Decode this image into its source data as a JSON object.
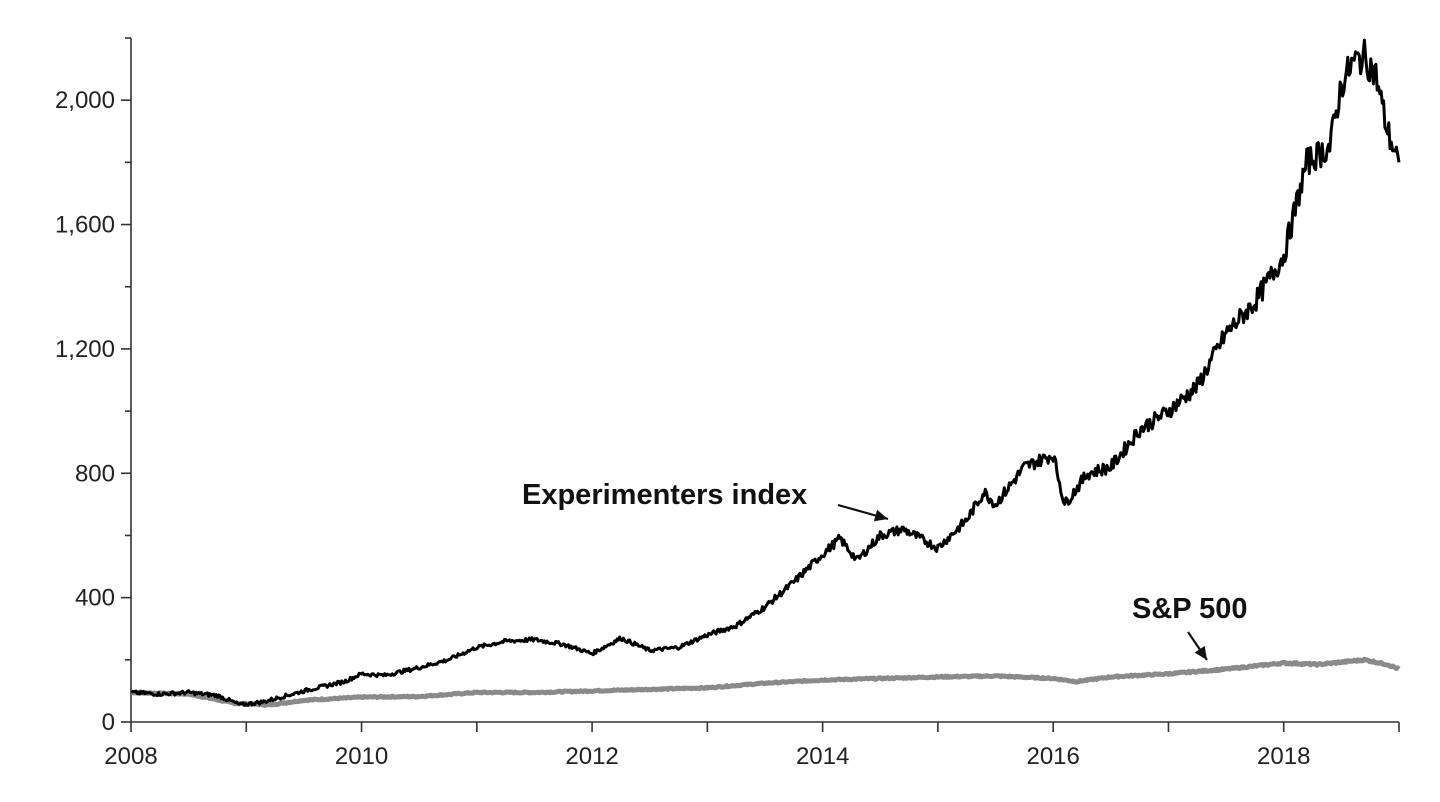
{
  "chart_data": {
    "type": "line",
    "title": "",
    "xlabel": "",
    "ylabel": "",
    "xlim": [
      2008,
      2019
    ],
    "ylim": [
      0,
      2200
    ],
    "x_ticks": [
      2008,
      2010,
      2012,
      2014,
      2016,
      2018
    ],
    "x_tick_labels": [
      "2008",
      "2010",
      "2012",
      "2014",
      "2016",
      "2018"
    ],
    "y_ticks": [
      0,
      400,
      800,
      1200,
      1600,
      2000
    ],
    "y_tick_labels": [
      "0",
      "400",
      "800",
      "1,200",
      "1,600",
      "2,000"
    ],
    "grid": false,
    "legend": "none",
    "series": [
      {
        "name": "Experimenters index",
        "color": "#000000",
        "x": [
          2008.0,
          2008.25,
          2008.5,
          2008.75,
          2008.95,
          2009.15,
          2009.5,
          2009.85,
          2010.0,
          2010.2,
          2010.5,
          2010.75,
          2011.0,
          2011.25,
          2011.5,
          2011.75,
          2012.0,
          2012.25,
          2012.5,
          2012.75,
          2013.0,
          2013.25,
          2013.5,
          2013.75,
          2014.0,
          2014.15,
          2014.3,
          2014.5,
          2014.7,
          2014.9,
          2015.0,
          2015.25,
          2015.4,
          2015.5,
          2015.75,
          2016.0,
          2016.1,
          2016.3,
          2016.5,
          2016.75,
          2017.0,
          2017.25,
          2017.5,
          2017.75,
          2018.0,
          2018.1,
          2018.2,
          2018.4,
          2018.5,
          2018.6,
          2018.7,
          2018.8,
          2018.9,
          2019.0
        ],
        "values": [
          95,
          90,
          95,
          85,
          55,
          65,
          100,
          130,
          155,
          150,
          175,
          200,
          240,
          260,
          265,
          250,
          220,
          270,
          230,
          240,
          280,
          310,
          370,
          450,
          540,
          590,
          520,
          600,
          620,
          580,
          560,
          650,
          740,
          700,
          820,
          860,
          700,
          800,
          820,
          940,
          1000,
          1080,
          1250,
          1350,
          1500,
          1650,
          1800,
          1850,
          2050,
          2120,
          2140,
          2080,
          1900,
          1800
        ]
      },
      {
        "name": "S&P 500",
        "color": "#8a8a8a",
        "x": [
          2008.0,
          2008.5,
          2008.9,
          2009.2,
          2009.5,
          2010.0,
          2010.5,
          2011.0,
          2011.5,
          2012.0,
          2012.5,
          2013.0,
          2013.5,
          2014.0,
          2014.5,
          2015.0,
          2015.5,
          2016.0,
          2016.2,
          2016.5,
          2017.0,
          2017.5,
          2018.0,
          2018.3,
          2018.7,
          2018.9,
          2019.0
        ],
        "values": [
          95,
          90,
          60,
          55,
          70,
          80,
          82,
          95,
          95,
          100,
          105,
          110,
          125,
          135,
          140,
          145,
          148,
          140,
          130,
          145,
          155,
          170,
          190,
          185,
          200,
          185,
          170
        ]
      }
    ],
    "annotations": [
      {
        "text": "Experimenters index",
        "series": 0,
        "arrow_to": {
          "x": 2014.7,
          "y": 635
        }
      },
      {
        "text": "S&P 500",
        "series": 1,
        "arrow_to": {
          "x": 2017.35,
          "y": 180
        }
      }
    ]
  }
}
